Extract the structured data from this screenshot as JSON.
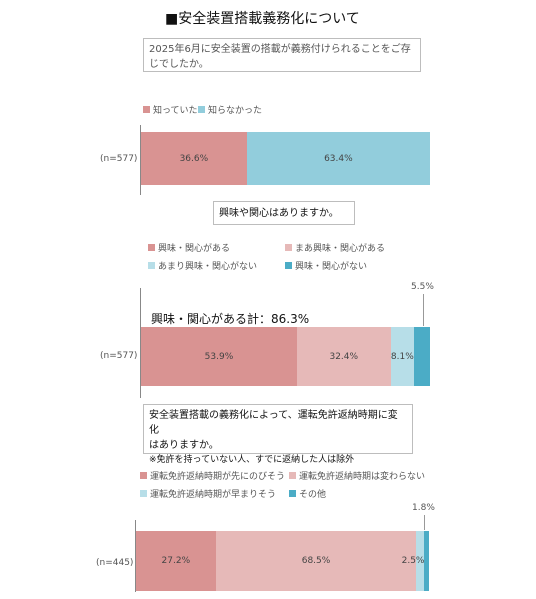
{
  "page": {
    "title": "■安全装置搭載義務化について"
  },
  "chart_data": [
    {
      "type": "bar",
      "question": "2025年6月に安全装置の搭載が義務付けられることをご存じでしたか。",
      "n_label": "(n=577)",
      "series": [
        {
          "name": "知っていた",
          "value": 36.6,
          "label": "36.6%",
          "color": "#d99392"
        },
        {
          "name": "知らなかった",
          "value": 63.4,
          "label": "63.4%",
          "color": "#92cddc"
        }
      ]
    },
    {
      "type": "bar",
      "question": "興味や関心はありますか。",
      "n_label": "(n=577)",
      "summary_label": "興味・関心がある計：86.3%",
      "series": [
        {
          "name": "興味・関心がある",
          "value": 53.9,
          "label": "53.9%",
          "color": "#d99392"
        },
        {
          "name": "まあ興味・関心がある",
          "value": 32.4,
          "label": "32.4%",
          "color": "#e6b9b8"
        },
        {
          "name": "あまり興味・関心がない",
          "value": 8.1,
          "label": "8.1%",
          "color": "#b7dee8"
        },
        {
          "name": "興味・関心がない",
          "value": 5.5,
          "label": "5.5%",
          "color": "#4bacc6"
        }
      ]
    },
    {
      "type": "bar",
      "question_line1": "安全装置搭載の義務化によって、運転免許返納時期に変化",
      "question_line2": "はありますか。",
      "question_note": "※免許を持っていない人、すでに返納した人は除外",
      "n_label": "(n=445)",
      "series": [
        {
          "name": "運転免許返納時期が先にのびそう",
          "value": 27.2,
          "label": "27.2%",
          "color": "#d99392"
        },
        {
          "name": "運転免許返納時期は変わらない",
          "value": 68.5,
          "label": "68.5%",
          "color": "#e6b9b8"
        },
        {
          "name": "運転免許返納時期が早まりそう",
          "value": 2.5,
          "label": "2.5%",
          "color": "#b7dee8"
        },
        {
          "name": "その他",
          "value": 1.8,
          "label": "1.8%",
          "color": "#4bacc6"
        }
      ]
    }
  ]
}
